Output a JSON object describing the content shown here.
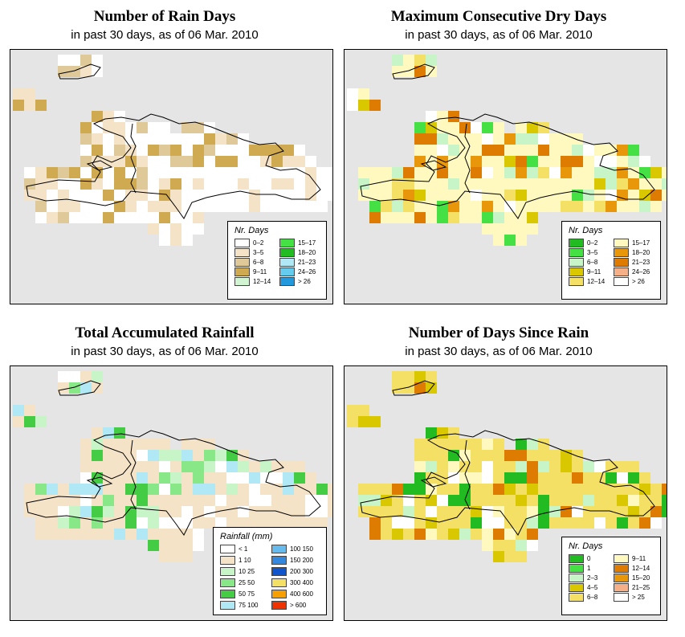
{
  "panels": [
    {
      "title": "Number of Rain Days",
      "subtitle": "in past 30 days, as of  06 Mar. 2010",
      "legend": {
        "title": "Nr. Days",
        "items": [
          {
            "label": "0–2",
            "color": "#ffffff"
          },
          {
            "label": "3–5",
            "color": "#f5e3c8"
          },
          {
            "label": "6–8",
            "color": "#e0c999"
          },
          {
            "label": "9–11",
            "color": "#cfaa50"
          },
          {
            "label": "12–14",
            "color": "#d0f5d0"
          },
          {
            "label": "15–17",
            "color": "#44e044"
          },
          {
            "label": "18–20",
            "color": "#22bb22"
          },
          {
            "label": "21–23",
            "color": "#b0e8f5"
          },
          {
            "label": "24–26",
            "color": "#66ccee"
          },
          {
            "label": "> 26",
            "color": "#2299dd"
          }
        ]
      }
    },
    {
      "title": "Maximum Consecutive Dry Days",
      "subtitle": "in past 30 days, as of  06 Mar. 2010",
      "legend": {
        "title": "Nr. Days",
        "items": [
          {
            "label": "0–2",
            "color": "#22bb22"
          },
          {
            "label": "3–5",
            "color": "#44e044"
          },
          {
            "label": "6–8",
            "color": "#c8f5c8"
          },
          {
            "label": "9–11",
            "color": "#d9c800"
          },
          {
            "label": "12–14",
            "color": "#f5e066"
          },
          {
            "label": "15–17",
            "color": "#fff9c0"
          },
          {
            "label": "18–20",
            "color": "#e8960a"
          },
          {
            "label": "21–23",
            "color": "#dd7c00"
          },
          {
            "label": "24–26",
            "color": "#f5b088"
          },
          {
            "label": "> 26",
            "color": "#ffffff"
          }
        ]
      }
    },
    {
      "title": "Total Accumulated Rainfall",
      "subtitle": "in past 30 days, as of  06 Mar. 2010",
      "legend": {
        "title": "Rainfall (mm)",
        "items": [
          {
            "label": "< 1",
            "color": "#ffffff"
          },
          {
            "label": "1   10",
            "color": "#f5e3c8"
          },
          {
            "label": "10   25",
            "color": "#c8f5c8"
          },
          {
            "label": "25   50",
            "color": "#88e888"
          },
          {
            "label": "50   75",
            "color": "#44cc44"
          },
          {
            "label": "75  100",
            "color": "#b0e8f5"
          },
          {
            "label": "100  150",
            "color": "#66bbee"
          },
          {
            "label": "150  200",
            "color": "#3388dd"
          },
          {
            "label": "200  300",
            "color": "#1155cc"
          },
          {
            "label": "300  400",
            "color": "#f5e066"
          },
          {
            "label": "400  600",
            "color": "#f5a000"
          },
          {
            "label": "> 600",
            "color": "#ee3300"
          }
        ]
      }
    },
    {
      "title": "Number of Days Since Rain",
      "subtitle": "in past 30 days, as of  06 Mar. 2010",
      "legend": {
        "title": "Nr. Days",
        "items": [
          {
            "label": "0",
            "color": "#22bb22"
          },
          {
            "label": "1",
            "color": "#44e044"
          },
          {
            "label": "2–3",
            "color": "#c8f5c8"
          },
          {
            "label": "4–5",
            "color": "#d9c800"
          },
          {
            "label": "6–8",
            "color": "#f5e066"
          },
          {
            "label": "9–11",
            "color": "#fff9c0"
          },
          {
            "label": "12–14",
            "color": "#dd7c00"
          },
          {
            "label": "15–20",
            "color": "#e8960a"
          },
          {
            "label": "21–25",
            "color": "#f5b088"
          },
          {
            "label": "> 25",
            "color": "#ffffff"
          }
        ]
      }
    }
  ]
}
